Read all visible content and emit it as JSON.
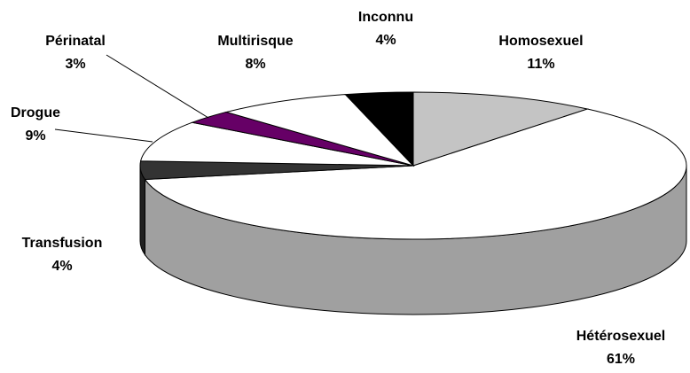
{
  "chart_data": {
    "type": "pie",
    "three_d": true,
    "categories": [
      "Homosexuel",
      "Hétérosexuel",
      "Transfusion",
      "Drogue",
      "Périnatal",
      "Multirisque",
      "Inconnu"
    ],
    "values": [
      11,
      61,
      4,
      9,
      3,
      8,
      4
    ],
    "value_labels": [
      "11%",
      "61%",
      "4%",
      "9%",
      "3%",
      "8%",
      "4%"
    ],
    "colors": [
      "#c4c4c4",
      "#ffffff",
      "#333333",
      "#ffffff",
      "#660066",
      "#ffffff",
      "#000000"
    ]
  }
}
